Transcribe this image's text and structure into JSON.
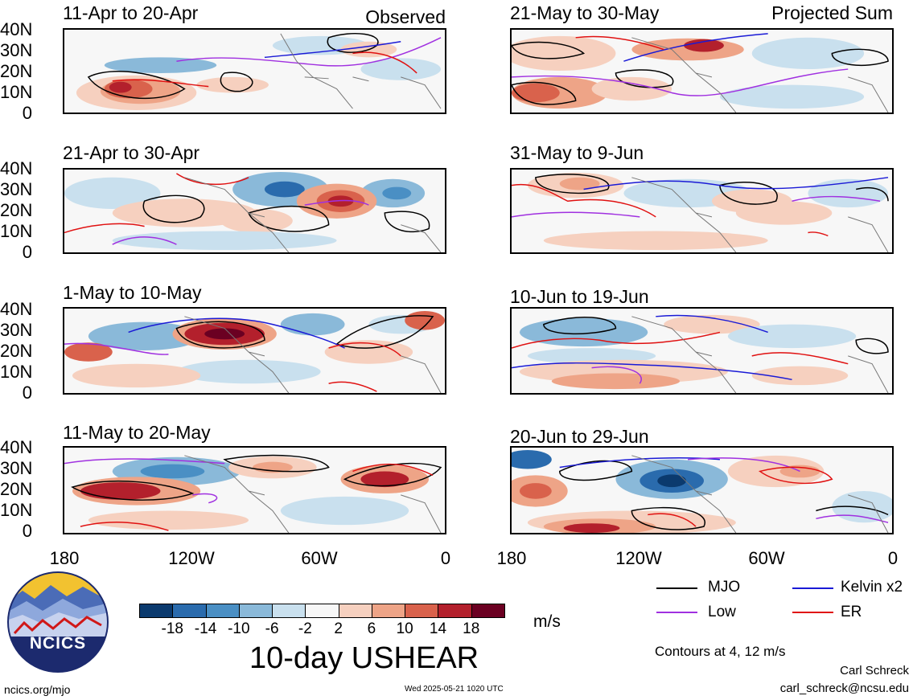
{
  "panels": [
    {
      "title": "11-Apr to 20-Apr",
      "tag": "Observed",
      "ticks": [
        "40N",
        "30N",
        "20N",
        "10N",
        "0"
      ]
    },
    {
      "title": "21-Apr to 30-Apr",
      "ticks": [
        "40N",
        "30N",
        "20N",
        "10N",
        "0"
      ]
    },
    {
      "title": "1-May to 10-May",
      "ticks": [
        "40N",
        "30N",
        "20N",
        "10N",
        "0"
      ]
    },
    {
      "title": "11-May to 20-May",
      "ticks": [
        "40N",
        "30N",
        "20N",
        "10N",
        "0"
      ]
    },
    {
      "title": "21-May to 30-May",
      "tag": "Projected Sum"
    },
    {
      "title": "31-May to 9-Jun"
    },
    {
      "title": "10-Jun to 19-Jun"
    },
    {
      "title": "20-Jun to 29-Jun"
    }
  ],
  "x_ticks": [
    "180",
    "120W",
    "60W",
    "0"
  ],
  "colorbar": {
    "labels": [
      "-18",
      "-14",
      "-10",
      "-6",
      "-2",
      "2",
      "6",
      "10",
      "14",
      "18"
    ],
    "colors": [
      "#0b3a6e",
      "#2a6bad",
      "#4a8fc4",
      "#8ab9d9",
      "#c9e0ee",
      "#f7f7f7",
      "#f6d0bf",
      "#eea487",
      "#d9624c",
      "#b3202c",
      "#6b0022"
    ],
    "unit": "m/s"
  },
  "variable_title": "10-day USHEAR",
  "legend": [
    {
      "label": "MJO",
      "color": "#000000"
    },
    {
      "label": "Kelvin x2",
      "color": "#1a1ad6"
    },
    {
      "label": "Low",
      "color": "#a030e0"
    },
    {
      "label": "ER",
      "color": "#e01010"
    }
  ],
  "contour_note": "Contours at 4, 12 m/s",
  "logo_text": "NCICS",
  "author_name": "Carl Schreck",
  "author_email": "carl_schreck@ncsu.edu",
  "site": "ncics.org/mjo",
  "timestamp": "Wed 2025-05-21 1020 UTC"
}
